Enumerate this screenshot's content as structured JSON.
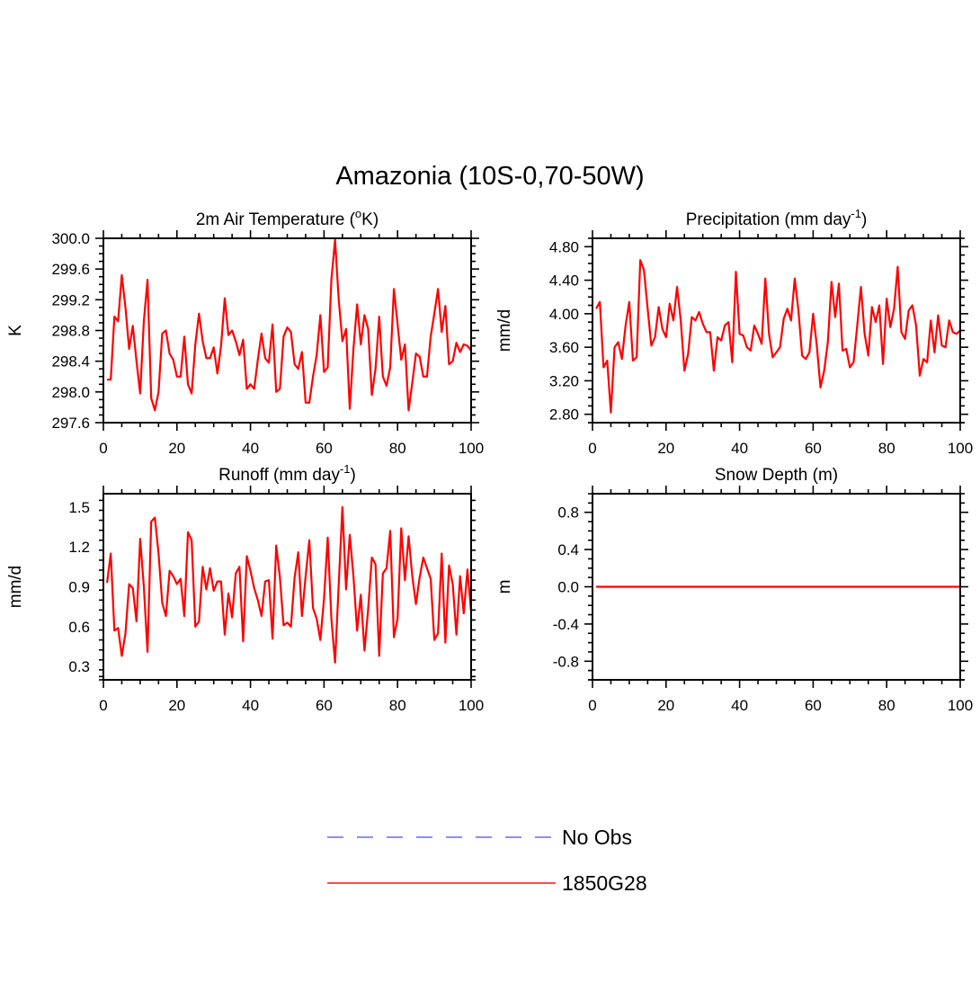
{
  "figure": {
    "title": "Amazonia (10S-0,70-50W)"
  },
  "legend": {
    "entries": [
      {
        "label": "No Obs",
        "color": "#7d7dff",
        "style": "dashed"
      },
      {
        "label": "1850G28",
        "color": "#ff3333",
        "style": "solid"
      }
    ]
  },
  "chart_data": [
    {
      "type": "line",
      "panel": "temperature",
      "title": "2m Air Temperature (",
      "title_sup": "o",
      "title_end": "K)",
      "ylabel": "K",
      "xlim": [
        0,
        100
      ],
      "ylim": [
        297.6,
        300.0
      ],
      "xticks": [
        0,
        20,
        40,
        60,
        80,
        100
      ],
      "yticks": [
        297.6,
        298.0,
        298.4,
        298.8,
        299.2,
        299.6,
        300.0
      ],
      "ytick_decimals": 1,
      "grid": false,
      "series": [
        {
          "color": "#ff0000",
          "x": [
            1,
            2,
            3,
            4,
            5,
            6,
            7,
            8,
            9,
            10,
            11,
            12,
            13,
            14,
            15,
            16,
            17,
            18,
            19,
            20,
            21,
            22,
            23,
            24,
            25,
            26,
            27,
            28,
            29,
            30,
            31,
            32,
            33,
            34,
            35,
            36,
            37,
            38,
            39,
            40,
            41,
            42,
            43,
            44,
            45,
            46,
            47,
            48,
            49,
            50,
            51,
            52,
            53,
            54,
            55,
            56,
            57,
            58,
            59,
            60,
            61,
            62,
            63,
            64,
            65,
            66,
            67,
            68,
            69,
            70,
            71,
            72,
            73,
            74,
            75,
            76,
            77,
            78,
            79,
            80,
            81,
            82,
            83,
            84,
            85,
            86,
            87,
            88,
            89,
            90,
            91,
            92,
            93,
            94,
            95,
            96,
            97,
            98,
            99,
            100
          ],
          "values": [
            298.16,
            298.16,
            298.98,
            298.92,
            299.52,
            299.1,
            298.56,
            298.86,
            298.4,
            297.98,
            298.92,
            299.46,
            297.92,
            297.76,
            298.0,
            298.76,
            298.8,
            298.5,
            298.42,
            298.2,
            298.2,
            298.72,
            298.1,
            297.98,
            298.62,
            299.02,
            298.66,
            298.44,
            298.44,
            298.58,
            298.24,
            298.6,
            299.22,
            298.74,
            298.8,
            298.66,
            298.48,
            298.68,
            298.04,
            298.1,
            298.04,
            298.42,
            298.76,
            298.44,
            298.38,
            298.88,
            298.0,
            298.04,
            298.72,
            298.84,
            298.78,
            298.36,
            298.3,
            298.52,
            297.86,
            297.86,
            298.2,
            298.48,
            299.0,
            298.26,
            298.32,
            299.46,
            299.98,
            299.2,
            298.66,
            298.82,
            297.78,
            298.56,
            299.14,
            298.62,
            299.0,
            298.82,
            297.96,
            298.3,
            298.98,
            298.2,
            298.08,
            298.32,
            299.34,
            298.88,
            298.42,
            298.62,
            297.76,
            298.12,
            298.5,
            298.46,
            298.2,
            298.2,
            298.72,
            299.02,
            299.34,
            298.78,
            299.12,
            298.36,
            298.4,
            298.64,
            298.52,
            298.62,
            298.6,
            298.54
          ]
        }
      ]
    },
    {
      "type": "line",
      "panel": "precipitation",
      "title": "Precipitation (mm day",
      "title_sup": "-1",
      "title_end": ")",
      "ylabel": "mm/d",
      "xlim": [
        0,
        100
      ],
      "ylim": [
        2.7,
        4.9
      ],
      "xticks": [
        0,
        20,
        40,
        60,
        80,
        100
      ],
      "yticks": [
        2.8,
        3.2,
        3.6,
        4.0,
        4.4,
        4.8
      ],
      "ytick_decimals": 2,
      "grid": false,
      "series": [
        {
          "color": "#ff0000",
          "x": [
            1,
            2,
            3,
            4,
            5,
            6,
            7,
            8,
            9,
            10,
            11,
            12,
            13,
            14,
            15,
            16,
            17,
            18,
            19,
            20,
            21,
            22,
            23,
            24,
            25,
            26,
            27,
            28,
            29,
            30,
            31,
            32,
            33,
            34,
            35,
            36,
            37,
            38,
            39,
            40,
            41,
            42,
            43,
            44,
            45,
            46,
            47,
            48,
            49,
            50,
            51,
            52,
            53,
            54,
            55,
            56,
            57,
            58,
            59,
            60,
            61,
            62,
            63,
            64,
            65,
            66,
            67,
            68,
            69,
            70,
            71,
            72,
            73,
            74,
            75,
            76,
            77,
            78,
            79,
            80,
            81,
            82,
            83,
            84,
            85,
            86,
            87,
            88,
            89,
            90,
            91,
            92,
            93,
            94,
            95,
            96,
            97,
            98,
            99,
            100
          ],
          "values": [
            4.06,
            4.14,
            3.36,
            3.44,
            2.82,
            3.6,
            3.66,
            3.46,
            3.86,
            4.14,
            3.44,
            3.48,
            4.64,
            4.52,
            4.06,
            3.62,
            3.72,
            4.08,
            3.82,
            3.72,
            4.12,
            3.92,
            4.32,
            3.92,
            3.32,
            3.52,
            3.96,
            3.92,
            4.02,
            3.88,
            3.78,
            3.78,
            3.32,
            3.72,
            3.68,
            3.86,
            3.9,
            3.42,
            4.5,
            3.76,
            3.74,
            3.6,
            3.56,
            3.86,
            3.76,
            3.64,
            4.42,
            3.76,
            3.48,
            3.54,
            3.6,
            3.94,
            4.06,
            3.92,
            4.42,
            4.04,
            3.5,
            3.46,
            3.54,
            4.0,
            3.62,
            3.12,
            3.32,
            3.66,
            4.38,
            3.96,
            4.36,
            3.56,
            3.58,
            3.36,
            3.42,
            3.86,
            4.32,
            3.76,
            3.5,
            4.08,
            3.9,
            4.1,
            3.4,
            4.18,
            3.84,
            4.06,
            4.56,
            3.78,
            3.7,
            4.04,
            4.1,
            3.86,
            3.26,
            3.46,
            3.42,
            3.92,
            3.54,
            3.98,
            3.62,
            3.6,
            3.92,
            3.78,
            3.76,
            3.8
          ]
        }
      ]
    },
    {
      "type": "line",
      "panel": "runoff",
      "title": "Runoff (mm day",
      "title_sup": "-1",
      "title_end": ")",
      "ylabel": "mm/d",
      "xlim": [
        0,
        100
      ],
      "ylim": [
        0.2,
        1.6
      ],
      "xticks": [
        0,
        20,
        40,
        60,
        80,
        100
      ],
      "yticks": [
        0.3,
        0.6,
        0.9,
        1.2,
        1.5
      ],
      "ytick_decimals": 1,
      "grid": false,
      "series": [
        {
          "color": "#ff0000",
          "x": [
            1,
            2,
            3,
            4,
            5,
            6,
            7,
            8,
            9,
            10,
            11,
            12,
            13,
            14,
            15,
            16,
            17,
            18,
            19,
            20,
            21,
            22,
            23,
            24,
            25,
            26,
            27,
            28,
            29,
            30,
            31,
            32,
            33,
            34,
            35,
            36,
            37,
            38,
            39,
            40,
            41,
            42,
            43,
            44,
            45,
            46,
            47,
            48,
            49,
            50,
            51,
            52,
            53,
            54,
            55,
            56,
            57,
            58,
            59,
            60,
            61,
            62,
            63,
            64,
            65,
            66,
            67,
            68,
            69,
            70,
            71,
            72,
            73,
            74,
            75,
            76,
            77,
            78,
            79,
            80,
            81,
            82,
            83,
            84,
            85,
            86,
            87,
            88,
            89,
            90,
            91,
            92,
            93,
            94,
            95,
            96,
            97,
            98,
            99,
            100
          ],
          "values": [
            0.93,
            1.15,
            0.57,
            0.59,
            0.38,
            0.55,
            0.92,
            0.89,
            0.64,
            1.26,
            0.9,
            0.41,
            1.39,
            1.42,
            1.15,
            0.78,
            0.68,
            1.02,
            0.98,
            0.92,
            0.96,
            0.68,
            1.31,
            1.25,
            0.6,
            0.64,
            1.05,
            0.88,
            1.04,
            0.87,
            0.94,
            0.94,
            0.54,
            0.85,
            0.67,
            1.0,
            1.05,
            0.49,
            1.13,
            1.02,
            0.89,
            0.8,
            0.68,
            0.94,
            0.95,
            0.51,
            1.21,
            0.97,
            0.61,
            0.63,
            0.6,
            0.97,
            1.16,
            0.68,
            0.98,
            1.25,
            0.74,
            0.66,
            0.5,
            0.81,
            1.27,
            0.66,
            0.33,
            0.92,
            1.5,
            0.88,
            1.29,
            0.98,
            0.57,
            0.84,
            0.42,
            0.73,
            1.12,
            1.07,
            0.38,
            1.0,
            1.04,
            1.32,
            0.52,
            0.66,
            1.34,
            0.95,
            1.28,
            0.98,
            0.77,
            0.97,
            1.12,
            1.04,
            0.96,
            0.5,
            0.55,
            1.15,
            0.48,
            1.06,
            0.92,
            0.54,
            0.98,
            0.7,
            1.03,
            0.71
          ]
        }
      ]
    },
    {
      "type": "line",
      "panel": "snow",
      "title": "Snow Depth (m)",
      "title_sup": "",
      "title_end": "",
      "ylabel": "m",
      "xlim": [
        0,
        100
      ],
      "ylim": [
        -1.0,
        1.0
      ],
      "xticks": [
        0,
        20,
        40,
        60,
        80,
        100
      ],
      "yticks": [
        -0.8,
        -0.4,
        0.0,
        0.4,
        0.8
      ],
      "ytick_decimals": 1,
      "grid": false,
      "series": [
        {
          "color": "#ff0000",
          "x": [
            1,
            100
          ],
          "values": [
            0.0,
            0.0
          ]
        }
      ]
    }
  ]
}
